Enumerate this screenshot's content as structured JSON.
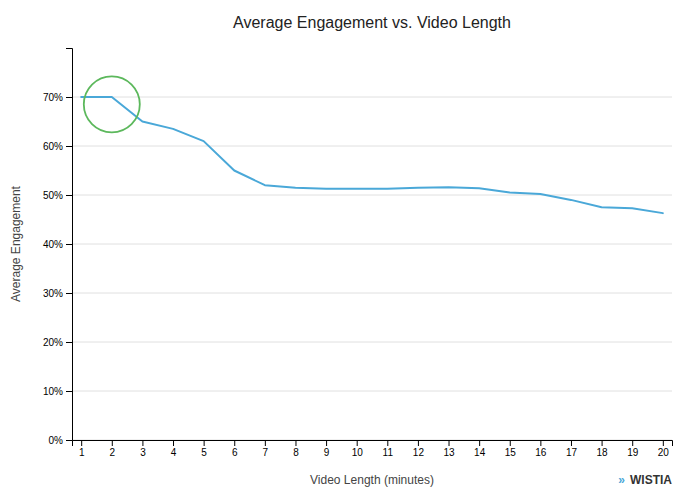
{
  "chart_data": {
    "type": "line",
    "title": "Average Engagement vs. Video Length",
    "xlabel": "Video Length (minutes)",
    "ylabel": "Average Engagement",
    "x": [
      1,
      2,
      3,
      4,
      5,
      6,
      7,
      8,
      9,
      10,
      11,
      12,
      13,
      14,
      15,
      16,
      17,
      18,
      19,
      20
    ],
    "values": [
      0.7,
      0.7,
      0.65,
      0.635,
      0.61,
      0.55,
      0.52,
      0.515,
      0.513,
      0.513,
      0.513,
      0.515,
      0.516,
      0.514,
      0.505,
      0.502,
      0.49,
      0.475,
      0.473,
      0.463
    ],
    "color": "#4aa8d8",
    "xlim": [
      0.7,
      20.3
    ],
    "ylim": [
      0,
      0.8
    ],
    "xticks": [
      1,
      2,
      3,
      4,
      5,
      6,
      7,
      8,
      9,
      10,
      11,
      12,
      13,
      14,
      15,
      16,
      17,
      18,
      19,
      20
    ],
    "yticks": [
      {
        "value": 0.0,
        "label": "0%"
      },
      {
        "value": 0.1,
        "label": "10%"
      },
      {
        "value": 0.2,
        "label": "20%"
      },
      {
        "value": 0.3,
        "label": "30%"
      },
      {
        "value": 0.4,
        "label": "40%"
      },
      {
        "value": 0.5,
        "label": "50%"
      },
      {
        "value": 0.6,
        "label": "60%"
      },
      {
        "value": 0.7,
        "label": "70%"
      }
    ],
    "grid": true,
    "annotations": [
      {
        "type": "circle",
        "x": 2.0,
        "y": 0.685,
        "color": "#5cb85c"
      },
      {
        "type": "text",
        "text": "WISTIA",
        "color": "#333333"
      },
      {
        "type": "text",
        "text": "»",
        "color": "#4aa8d8"
      }
    ]
  }
}
